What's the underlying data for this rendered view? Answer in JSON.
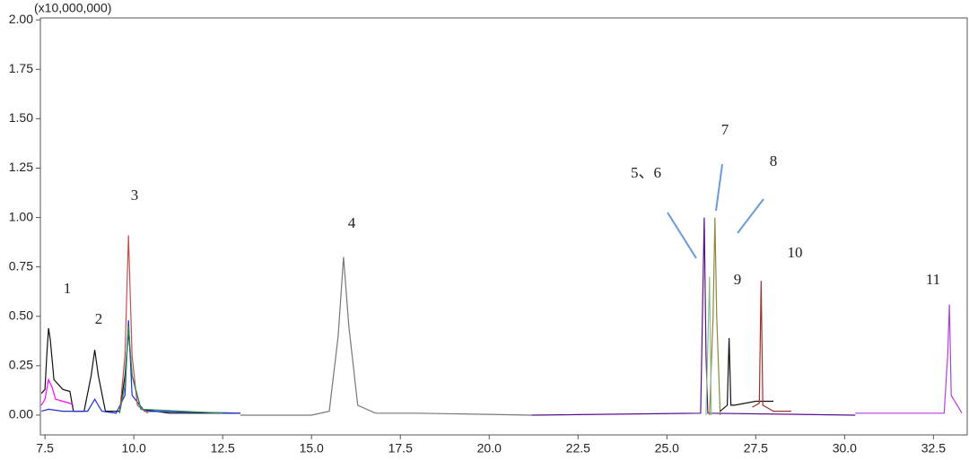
{
  "chart_data": {
    "type": "line",
    "y_axis_label": "(x10,000,000)",
    "xlim": [
      7.37,
      33.45
    ],
    "ylim": [
      -0.1,
      2.01
    ],
    "xticks": [
      7.5,
      {
        "value": 10,
        "label": "10.0"
      },
      12.5,
      {
        "value": 15,
        "label": "15.0"
      },
      17.5,
      {
        "value": 20,
        "label": "20.0"
      },
      22.5,
      {
        "value": 25,
        "label": "25.0"
      },
      27.5,
      {
        "value": 30,
        "label": "30.0"
      },
      32.5
    ],
    "yticks": [
      {
        "value": 0,
        "label": "0.00"
      },
      {
        "value": 0.25,
        "label": "0.25"
      },
      {
        "value": 0.5,
        "label": "0.50"
      },
      {
        "value": 0.75,
        "label": "0.75"
      },
      {
        "value": 1,
        "label": "1.00"
      },
      {
        "value": 1.25,
        "label": "1.25"
      },
      {
        "value": 1.5,
        "label": "1.50"
      },
      {
        "value": 1.75,
        "label": "1.75"
      },
      {
        "value": 2,
        "label": "2.00"
      }
    ],
    "annotations": [
      "1",
      "2",
      "3",
      "4",
      "5、6",
      "7",
      "8",
      "9",
      "10",
      "11"
    ],
    "series": [
      {
        "color": "#111111",
        "x": [
          7.4,
          7.5,
          7.55,
          7.6,
          7.65,
          7.75,
          8.0,
          8.2,
          8.3,
          8.6,
          8.8,
          8.9,
          9.0,
          9.2,
          9.6,
          9.75,
          9.85,
          9.95,
          10.2,
          11,
          13
        ],
        "values": [
          0.11,
          0.13,
          0.3,
          0.44,
          0.38,
          0.18,
          0.13,
          0.12,
          0.02,
          0.02,
          0.2,
          0.33,
          0.2,
          0.02,
          0.02,
          0.2,
          0.42,
          0.2,
          0.03,
          0.01,
          0.01
        ]
      },
      {
        "color": "#ff00ff",
        "x": [
          7.4,
          7.5,
          7.6,
          7.7,
          7.8,
          8.0,
          8.2,
          8.3
        ],
        "values": [
          0.05,
          0.08,
          0.18,
          0.14,
          0.08,
          0.07,
          0.06,
          0.05
        ]
      },
      {
        "color": "#1e2fd8",
        "x": [
          7.4,
          7.6,
          8.0,
          8.3,
          8.7,
          8.9,
          9.1,
          9.5,
          9.75,
          9.85,
          9.95,
          10.3,
          13
        ],
        "values": [
          0.02,
          0.03,
          0.02,
          0.02,
          0.02,
          0.08,
          0.02,
          0.01,
          0.1,
          0.48,
          0.1,
          0.02,
          0.01
        ]
      },
      {
        "color": "#c0504d",
        "x": [
          9.6,
          9.75,
          9.85,
          9.95,
          10.1,
          10.4
        ],
        "values": [
          0.01,
          0.3,
          0.91,
          0.3,
          0.05,
          0.01
        ]
      },
      {
        "color": "#2e8b57",
        "x": [
          9.6,
          9.75,
          9.85,
          9.95,
          10.2,
          12.5
        ],
        "values": [
          0.01,
          0.15,
          0.45,
          0.2,
          0.03,
          0.01
        ]
      },
      {
        "color": "#777777",
        "x": [
          13,
          15,
          15.5,
          15.75,
          15.9,
          16.05,
          16.3,
          16.8,
          18,
          21.2
        ],
        "values": [
          0,
          0,
          0.02,
          0.4,
          0.8,
          0.45,
          0.05,
          0.01,
          0.01,
          0
        ]
      },
      {
        "color": "#5a0d8a",
        "x": [
          21.2,
          25.95,
          26.0,
          26.05,
          26.1,
          26.15,
          30.3
        ],
        "values": [
          0,
          0.01,
          0.5,
          1.0,
          0.3,
          0.01,
          0
        ]
      },
      {
        "color": "#8a8a3a",
        "x": [
          26.2,
          26.3,
          26.35,
          26.4,
          26.5
        ],
        "values": [
          0,
          0.5,
          1.0,
          0.5,
          0
        ]
      },
      {
        "color": "#8fbf8f",
        "x": [
          26.1,
          26.2,
          26.25
        ],
        "values": [
          0,
          0.7,
          0
        ]
      },
      {
        "color": "#111111",
        "x": [
          26.5,
          26.7,
          26.75,
          26.8,
          26.9,
          27.5,
          28
        ],
        "values": [
          0.02,
          0.05,
          0.39,
          0.05,
          0.05,
          0.07,
          0.07
        ]
      },
      {
        "color": "#a0302a",
        "x": [
          27.4,
          27.6,
          27.65,
          27.7,
          28.0,
          28.5
        ],
        "values": [
          0.04,
          0.06,
          0.68,
          0.05,
          0.02,
          0.02
        ]
      },
      {
        "color": "#b040e0",
        "x": [
          30.3,
          32.8,
          32.9,
          32.95,
          33.0,
          33.3
        ],
        "values": [
          0.01,
          0.01,
          0.3,
          0.56,
          0.1,
          0.01
        ]
      }
    ]
  }
}
